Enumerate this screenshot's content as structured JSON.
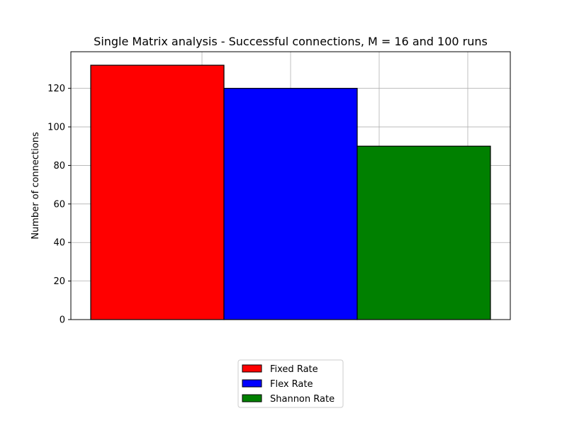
{
  "chart_data": {
    "type": "bar",
    "title": "Single Matrix analysis - Successful connections, M = 16 and 100 runs",
    "xlabel": "",
    "ylabel": "Number of connections",
    "ylim": [
      0,
      139
    ],
    "y_ticks": [
      0,
      20,
      40,
      60,
      80,
      100,
      120
    ],
    "grid": true,
    "legend_position": "bottom-center",
    "series": [
      {
        "name": "Fixed Rate",
        "value": 132,
        "color": "#ff0000"
      },
      {
        "name": "Flex Rate",
        "value": 120,
        "color": "#0000ff"
      },
      {
        "name": "Shannon Rate",
        "value": 90,
        "color": "#008000"
      }
    ]
  }
}
